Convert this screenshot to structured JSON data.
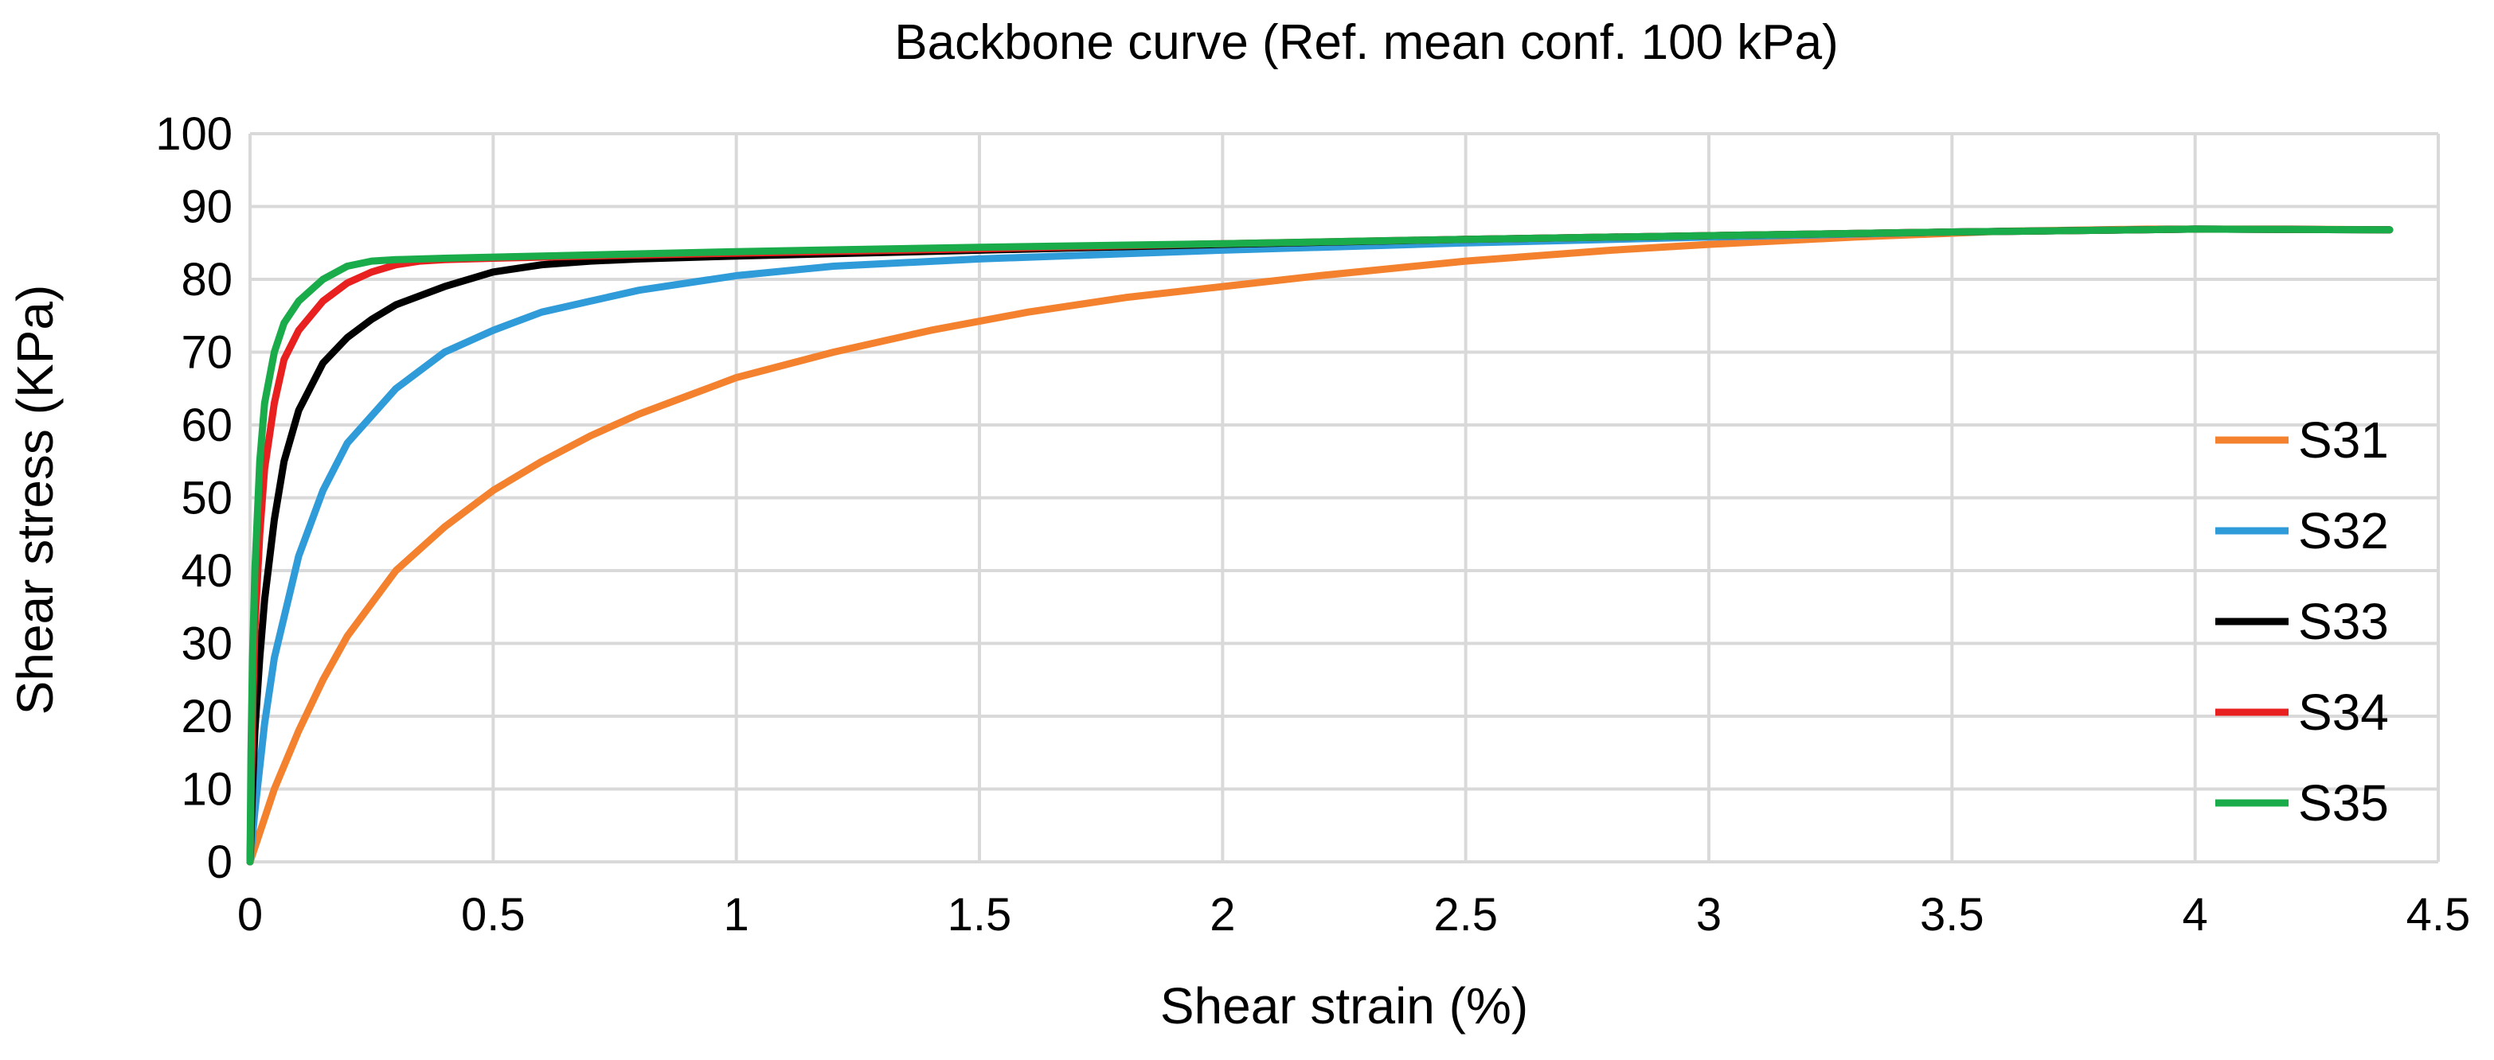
{
  "chart_data": {
    "type": "line",
    "title": "Backbone curve (Ref. mean conf. 100 kPa)",
    "xlabel": "Shear strain (%)",
    "ylabel": "Shear stress (KPa)",
    "xlim": [
      0,
      4.5
    ],
    "ylim": [
      0,
      100
    ],
    "xticks": [
      0,
      0.5,
      1,
      1.5,
      2,
      2.5,
      3,
      3.5,
      4,
      4.5
    ],
    "yticks": [
      0,
      10,
      20,
      30,
      40,
      50,
      60,
      70,
      80,
      90,
      100
    ],
    "xtick_labels": [
      "0",
      "0.5",
      "1",
      "1.5",
      "2",
      "2.5",
      "3",
      "3.5",
      "4",
      "4.5"
    ],
    "ytick_labels": [
      "0",
      "10",
      "20",
      "30",
      "40",
      "50",
      "60",
      "70",
      "80",
      "90",
      "100"
    ],
    "grid": true,
    "legend_position": "right",
    "series": [
      {
        "name": "S31",
        "color": "#f4812e",
        "x": [
          0,
          0.05,
          0.1,
          0.15,
          0.2,
          0.3,
          0.4,
          0.5,
          0.6,
          0.7,
          0.8,
          0.9,
          1.0,
          1.2,
          1.4,
          1.6,
          1.8,
          2.0,
          2.2,
          2.5,
          2.8,
          3.0,
          3.3,
          3.6,
          3.9,
          4.2,
          4.4
        ],
        "values": [
          0,
          10,
          18,
          25,
          31,
          40,
          46,
          51,
          55,
          58.5,
          61.5,
          64,
          66.5,
          70,
          73,
          75.5,
          77.5,
          79,
          80.5,
          82.5,
          84,
          84.8,
          85.8,
          86.6,
          86.9,
          86.9,
          86.8
        ]
      },
      {
        "name": "S32",
        "color": "#2f9bd8",
        "x": [
          0,
          0.01,
          0.03,
          0.05,
          0.1,
          0.15,
          0.2,
          0.3,
          0.4,
          0.5,
          0.6,
          0.7,
          0.8,
          1.0,
          1.2,
          1.5,
          2.0,
          2.5,
          3.0,
          3.5,
          4.0,
          4.4
        ],
        "values": [
          0,
          7,
          19,
          28,
          42,
          51,
          57.5,
          65,
          70,
          73,
          75.5,
          77,
          78.5,
          80.5,
          81.8,
          82.8,
          84,
          85,
          85.8,
          86.5,
          86.9,
          86.8
        ]
      },
      {
        "name": "S33",
        "color": "#000000",
        "x": [
          0,
          0.005,
          0.01,
          0.02,
          0.03,
          0.05,
          0.07,
          0.1,
          0.15,
          0.2,
          0.25,
          0.3,
          0.4,
          0.5,
          0.6,
          0.7,
          0.8,
          1.0,
          1.5,
          2.0,
          2.5,
          3.0,
          3.5,
          4.0,
          4.4
        ],
        "values": [
          0,
          10,
          18,
          28,
          36,
          47,
          55,
          62,
          68.5,
          72,
          74.5,
          76.5,
          79,
          81,
          82,
          82.5,
          82.8,
          83.2,
          84,
          84.8,
          85.5,
          86,
          86.5,
          86.9,
          86.8
        ]
      },
      {
        "name": "S34",
        "color": "#e8201f",
        "x": [
          0,
          0.003,
          0.006,
          0.01,
          0.02,
          0.03,
          0.05,
          0.07,
          0.1,
          0.15,
          0.2,
          0.25,
          0.3,
          0.35,
          0.4,
          0.5,
          0.7,
          1.0,
          1.5,
          2.0,
          2.5,
          3.0,
          3.5,
          4.0,
          4.4
        ],
        "values": [
          0,
          12,
          22,
          32,
          45,
          54,
          63,
          69,
          73,
          77,
          79.5,
          81,
          82,
          82.5,
          82.7,
          82.9,
          83.2,
          83.6,
          84.2,
          84.9,
          85.5,
          86,
          86.5,
          86.9,
          86.8
        ]
      },
      {
        "name": "S35",
        "color": "#1aab4b",
        "x": [
          0,
          0.002,
          0.005,
          0.01,
          0.02,
          0.03,
          0.05,
          0.07,
          0.1,
          0.15,
          0.2,
          0.25,
          0.3,
          0.4,
          0.6,
          1.0,
          1.5,
          2.0,
          2.5,
          3.0,
          3.5,
          4.0,
          4.4
        ],
        "values": [
          0,
          15,
          28,
          40,
          55,
          63,
          70,
          74,
          77,
          80,
          81.8,
          82.5,
          82.7,
          82.9,
          83.2,
          83.8,
          84.4,
          84.9,
          85.5,
          86,
          86.5,
          86.9,
          86.8
        ]
      }
    ]
  }
}
